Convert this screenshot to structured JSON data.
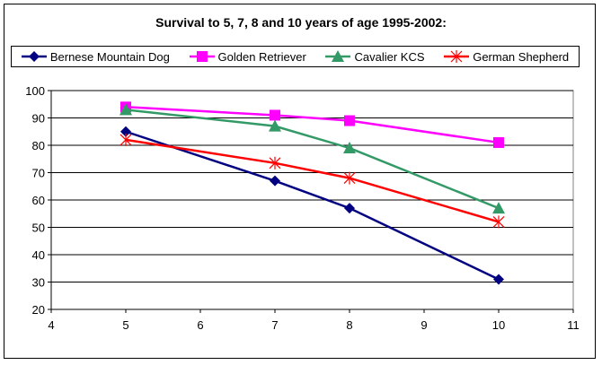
{
  "chart_data": {
    "type": "line",
    "title": "Survival to 5, 7, 8 and 10 years of age 1995-2002:",
    "xlabel": "",
    "ylabel": "",
    "xlim": [
      4,
      11
    ],
    "ylim": [
      20,
      100
    ],
    "xticks": [
      4,
      5,
      6,
      7,
      8,
      9,
      10,
      11
    ],
    "yticks": [
      20,
      30,
      40,
      50,
      60,
      70,
      80,
      90,
      100
    ],
    "grid": "horizontal",
    "legend_position": "top",
    "x": [
      5,
      7,
      8,
      10
    ],
    "series": [
      {
        "name": "Bernese Mountain Dog",
        "values": [
          85,
          67,
          57,
          31
        ],
        "color": "#000080",
        "marker": "diamond"
      },
      {
        "name": "Golden Retriever",
        "values": [
          94,
          91,
          89,
          81
        ],
        "color": "#ff00ff",
        "marker": "square"
      },
      {
        "name": "Cavalier KCS",
        "values": [
          93,
          87,
          79,
          57
        ],
        "color": "#339966",
        "marker": "triangle"
      },
      {
        "name": "German Shepherd",
        "values": [
          82,
          73.5,
          68,
          52
        ],
        "color": "#ff0000",
        "marker": "star"
      }
    ]
  }
}
